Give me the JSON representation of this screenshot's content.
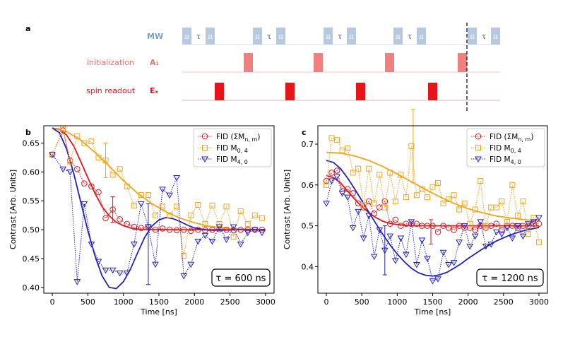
{
  "panel_a": {
    "label": "a",
    "rows": [
      {
        "name": "MW",
        "label": "MW",
        "color": "#7b9fd0",
        "pulse_color": "#b7c9e0"
      },
      {
        "name": "initialization",
        "label": "initialization",
        "channel": "A₁",
        "color": "#f07070",
        "pulse_color": "#f08080"
      },
      {
        "name": "spin-readout",
        "label": "spin readout",
        "channel": "Eₓ",
        "color": "#e8141a",
        "pulse_color": "#e8141a"
      }
    ],
    "pi_label": "π",
    "tau_label": "τ"
  },
  "colors": {
    "total": "#e8141a",
    "m04": "#f5a418",
    "m40": "#2020c8",
    "fit_total": "#e8141a",
    "fit_m04": "#f5a418",
    "fit_m40": "#2020c8"
  },
  "chart_data": [
    {
      "type": "line",
      "panel": "b",
      "title": "",
      "xlabel": "Time [ns]",
      "ylabel": "Contrast [Arb. Units]",
      "xlim": [
        -120,
        3120
      ],
      "ylim": [
        0.39,
        0.68
      ],
      "xticks": [
        0,
        500,
        1000,
        1500,
        2000,
        2500,
        3000
      ],
      "yticks": [
        0.4,
        0.45,
        0.5,
        0.55,
        0.6,
        0.65
      ],
      "ytick_labels": [
        "0.40",
        "0.45",
        "0.50",
        "0.55",
        "0.60",
        "0.65"
      ],
      "annotation": "τ = 600 ns",
      "legend": [
        "FID (ΣM",
        "FID M",
        "FID M"
      ],
      "legend_sub": [
        "n, m",
        "0, 4",
        "4, 0"
      ],
      "legend_suffix": [
        ")",
        "",
        ""
      ],
      "series": [
        {
          "name": "FID (ΣMn,m)",
          "key": "total",
          "x": [
            0,
            150,
            250,
            350,
            450,
            550,
            650,
            750,
            850,
            950,
            1050,
            1150,
            1250,
            1350,
            1450,
            1550,
            1650,
            1750,
            1850,
            1950,
            2050,
            2150,
            2250,
            2350,
            2450,
            2550,
            2650,
            2750,
            2850,
            2950
          ],
          "y": [
            0.63,
            0.672,
            0.62,
            0.605,
            0.58,
            0.575,
            0.565,
            0.52,
            0.535,
            0.518,
            0.51,
            0.505,
            0.503,
            0.505,
            0.5,
            0.502,
            0.5,
            0.499,
            0.5,
            0.498,
            0.5,
            0.499,
            0.5,
            0.501,
            0.5,
            0.499,
            0.5,
            0.5,
            0.5,
            0.5
          ],
          "errbar": {
            "x": 850,
            "y": 0.535,
            "err": 0.022
          }
        },
        {
          "name": "FID M0,4",
          "key": "m04",
          "x": [
            0,
            150,
            250,
            350,
            450,
            550,
            650,
            750,
            850,
            950,
            1050,
            1150,
            1250,
            1350,
            1450,
            1550,
            1650,
            1750,
            1850,
            1950,
            2050,
            2150,
            2250,
            2350,
            2450,
            2550,
            2650,
            2750,
            2850,
            2950
          ],
          "y": [
            0.63,
            0.675,
            0.618,
            0.662,
            0.65,
            0.653,
            0.625,
            0.62,
            0.595,
            0.605,
            0.575,
            0.542,
            0.56,
            0.56,
            0.525,
            0.54,
            0.525,
            0.54,
            0.455,
            0.525,
            0.543,
            0.51,
            0.542,
            0.51,
            0.54,
            0.488,
            0.532,
            0.51,
            0.525,
            0.52
          ],
          "errbar": {
            "x": 750,
            "y": 0.62,
            "err": 0.03
          }
        },
        {
          "name": "FID M4,0",
          "key": "m40",
          "x": [
            0,
            150,
            250,
            350,
            450,
            550,
            650,
            750,
            850,
            950,
            1050,
            1150,
            1250,
            1350,
            1450,
            1550,
            1650,
            1750,
            1850,
            1950,
            2050,
            2150,
            2250,
            2350,
            2450,
            2550,
            2650,
            2750,
            2850,
            2950
          ],
          "y": [
            0.63,
            0.605,
            0.6,
            0.41,
            0.545,
            0.475,
            0.445,
            0.43,
            0.43,
            0.425,
            0.425,
            0.475,
            0.545,
            0.505,
            0.44,
            0.57,
            0.56,
            0.59,
            0.42,
            0.44,
            0.48,
            0.49,
            0.48,
            0.505,
            0.483,
            0.505,
            0.475,
            0.495,
            0.5,
            0.495
          ],
          "errbar": {
            "x": 1350,
            "y": 0.475,
            "err": 0.07
          }
        }
      ],
      "fits": [
        {
          "key": "fit_total",
          "x": [
            0,
            100,
            200,
            300,
            400,
            500,
            600,
            700,
            800,
            900,
            1000,
            1100,
            1200,
            1400,
            1600,
            2000,
            2500,
            3000
          ],
          "y": [
            0.676,
            0.674,
            0.664,
            0.645,
            0.618,
            0.59,
            0.563,
            0.54,
            0.524,
            0.513,
            0.507,
            0.503,
            0.501,
            0.5,
            0.5,
            0.5,
            0.5,
            0.5
          ]
        },
        {
          "key": "fit_m04",
          "x": [
            0,
            200,
            400,
            600,
            800,
            1000,
            1200,
            1400,
            1600,
            1800,
            2000,
            2200,
            2500,
            3000
          ],
          "y": [
            0.676,
            0.67,
            0.655,
            0.634,
            0.61,
            0.585,
            0.563,
            0.545,
            0.531,
            0.52,
            0.512,
            0.506,
            0.502,
            0.5
          ]
        },
        {
          "key": "fit_m40",
          "x": [
            0,
            100,
            200,
            300,
            400,
            500,
            600,
            700,
            800,
            900,
            1000,
            1100,
            1200,
            1300,
            1400,
            1500,
            1600,
            1700,
            1800,
            1900,
            2000,
            2200,
            2400,
            2600,
            3000
          ],
          "y": [
            0.676,
            0.668,
            0.64,
            0.598,
            0.548,
            0.498,
            0.455,
            0.42,
            0.4,
            0.398,
            0.41,
            0.432,
            0.46,
            0.487,
            0.506,
            0.517,
            0.521,
            0.519,
            0.514,
            0.508,
            0.503,
            0.499,
            0.499,
            0.5,
            0.5
          ]
        }
      ]
    },
    {
      "type": "line",
      "panel": "c",
      "title": "",
      "xlabel": "Time [ns]",
      "ylabel": "Contrast [Arb. Units]",
      "xlim": [
        -120,
        3120
      ],
      "ylim": [
        0.335,
        0.745
      ],
      "xticks": [
        0,
        500,
        1000,
        1500,
        2000,
        2500,
        3000
      ],
      "yticks": [
        0.4,
        0.5,
        0.6,
        0.7
      ],
      "ytick_labels": [
        "0.4",
        "0.5",
        "0.6",
        "0.7"
      ],
      "annotation": "τ = 1200 ns",
      "legend": [
        "FID (ΣM",
        "FID M",
        "FID M"
      ],
      "legend_sub": [
        "n, m",
        "0, 4",
        "4, 0"
      ],
      "legend_suffix": [
        ")",
        "",
        ""
      ],
      "series": [
        {
          "name": "FID (ΣMn,m)",
          "key": "total",
          "x": [
            0,
            75,
            150,
            225,
            300,
            375,
            450,
            525,
            600,
            675,
            750,
            825,
            900,
            975,
            1050,
            1125,
            1200,
            1275,
            1350,
            1425,
            1500,
            1575,
            1650,
            1725,
            1800,
            1875,
            1950,
            2025,
            2100,
            2175,
            2250,
            2325,
            2400,
            2475,
            2550,
            2625,
            2700,
            2775,
            2850,
            2925,
            3000
          ],
          "y": [
            0.61,
            0.63,
            0.635,
            0.585,
            0.59,
            0.58,
            0.555,
            0.545,
            0.56,
            0.53,
            0.545,
            0.56,
            0.505,
            0.515,
            0.5,
            0.505,
            0.505,
            0.505,
            0.5,
            0.5,
            0.5,
            0.485,
            0.5,
            0.495,
            0.49,
            0.5,
            0.495,
            0.495,
            0.49,
            0.5,
            0.495,
            0.5,
            0.505,
            0.49,
            0.5,
            0.5,
            0.495,
            0.5,
            0.5,
            0.505,
            0.505
          ],
          "errbar": {
            "x": 1475,
            "y": 0.485,
            "err": 0.03
          }
        },
        {
          "name": "FID M0,4",
          "key": "m04",
          "x": [
            0,
            75,
            150,
            225,
            300,
            375,
            450,
            525,
            600,
            675,
            750,
            825,
            900,
            975,
            1050,
            1125,
            1200,
            1275,
            1350,
            1425,
            1500,
            1575,
            1650,
            1725,
            1800,
            1875,
            1950,
            2025,
            2100,
            2175,
            2250,
            2325,
            2400,
            2475,
            2550,
            2625,
            2700,
            2775,
            2850,
            2925,
            3000
          ],
          "y": [
            0.6,
            0.715,
            0.71,
            0.685,
            0.69,
            0.63,
            0.64,
            0.55,
            0.64,
            0.555,
            0.625,
            0.545,
            0.63,
            0.56,
            0.625,
            0.57,
            0.695,
            0.575,
            0.59,
            0.57,
            0.595,
            0.605,
            0.555,
            0.565,
            0.575,
            0.54,
            0.555,
            0.505,
            0.54,
            0.61,
            0.5,
            0.545,
            0.545,
            0.56,
            0.51,
            0.6,
            0.525,
            0.56,
            0.48,
            0.52,
            0.46
          ],
          "errbar": {
            "x": 1225,
            "y": 0.695,
            "err": 0.09
          }
        },
        {
          "name": "FID M4,0",
          "key": "m40",
          "x": [
            0,
            75,
            150,
            225,
            300,
            375,
            450,
            525,
            600,
            675,
            750,
            825,
            900,
            975,
            1050,
            1125,
            1200,
            1275,
            1350,
            1425,
            1500,
            1575,
            1650,
            1725,
            1800,
            1875,
            1950,
            2025,
            2100,
            2175,
            2250,
            2325,
            2400,
            2475,
            2550,
            2625,
            2700,
            2775,
            2850,
            2925,
            3000
          ],
          "y": [
            0.555,
            0.61,
            0.62,
            0.58,
            0.57,
            0.495,
            0.535,
            0.47,
            0.525,
            0.425,
            0.49,
            0.44,
            0.475,
            0.415,
            0.47,
            0.43,
            0.51,
            0.405,
            0.465,
            0.42,
            0.365,
            0.37,
            0.435,
            0.405,
            0.41,
            0.46,
            0.5,
            0.45,
            0.475,
            0.51,
            0.45,
            0.455,
            0.485,
            0.48,
            0.495,
            0.47,
            0.5,
            0.475,
            0.505,
            0.51,
            0.52
          ],
          "errbar": {
            "x": 825,
            "y": 0.44,
            "err": 0.06
          }
        }
      ],
      "fits": [
        {
          "key": "fit_total",
          "x": [
            0,
            100,
            200,
            300,
            400,
            500,
            600,
            700,
            800,
            900,
            1000,
            1200,
            1400,
            1800,
            2400,
            3000
          ],
          "y": [
            0.623,
            0.618,
            0.605,
            0.585,
            0.565,
            0.547,
            0.532,
            0.52,
            0.511,
            0.506,
            0.503,
            0.5,
            0.5,
            0.5,
            0.5,
            0.5
          ]
        },
        {
          "key": "fit_m04",
          "x": [
            0,
            200,
            400,
            600,
            800,
            1000,
            1200,
            1400,
            1600,
            1800,
            2000,
            2200,
            2400,
            2600,
            2800,
            3000
          ],
          "y": [
            0.68,
            0.678,
            0.671,
            0.66,
            0.645,
            0.627,
            0.608,
            0.589,
            0.571,
            0.555,
            0.542,
            0.532,
            0.524,
            0.519,
            0.515,
            0.512
          ]
        },
        {
          "key": "fit_m40",
          "x": [
            0,
            100,
            200,
            300,
            400,
            500,
            600,
            700,
            800,
            900,
            1000,
            1100,
            1200,
            1300,
            1400,
            1500,
            1600,
            1700,
            1800,
            1900,
            2000,
            2200,
            2400,
            2600,
            2800,
            3000
          ],
          "y": [
            0.66,
            0.655,
            0.64,
            0.617,
            0.59,
            0.562,
            0.533,
            0.505,
            0.478,
            0.453,
            0.431,
            0.412,
            0.396,
            0.385,
            0.379,
            0.377,
            0.38,
            0.386,
            0.396,
            0.407,
            0.42,
            0.443,
            0.463,
            0.478,
            0.489,
            0.496
          ]
        }
      ]
    }
  ]
}
